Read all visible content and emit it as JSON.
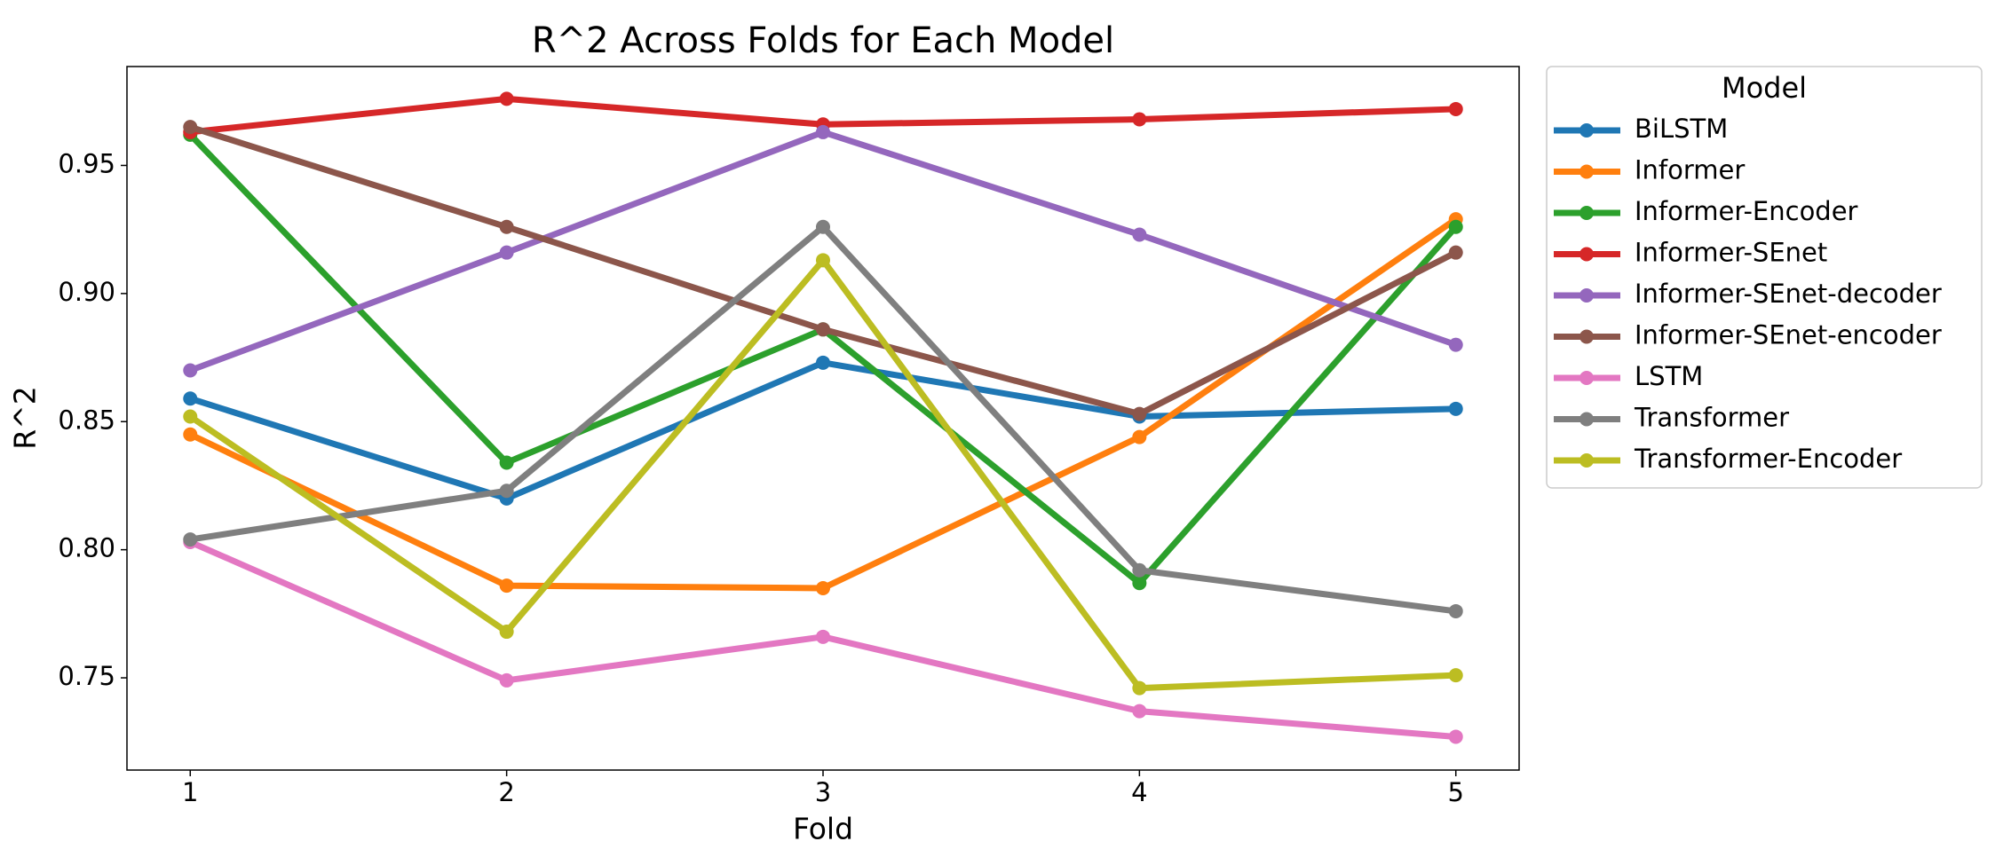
{
  "chart_data": {
    "type": "line",
    "title": "R^2 Across Folds for Each Model",
    "x_label": "Fold",
    "y_label": "R^2",
    "x": [
      1,
      2,
      3,
      4,
      5
    ],
    "xlim": [
      0.8,
      5.2
    ],
    "xticks": [
      1,
      2,
      3,
      4,
      5
    ],
    "ylim": [
      0.714,
      0.9886
    ],
    "yticks": [
      0.75,
      {
        "value": 0.8,
        "label": "0.80"
      },
      0.85,
      {
        "value": 0.9,
        "label": "0.90"
      },
      0.95
    ],
    "grid": false,
    "legend_title": "Model",
    "legend_position": "outside-right",
    "series": [
      {
        "name": "BiLSTM",
        "color": "#1f77b4",
        "values": [
          0.859,
          0.82,
          0.873,
          0.852,
          0.855
        ]
      },
      {
        "name": "Informer",
        "color": "#ff7f0e",
        "values": [
          0.845,
          0.786,
          0.785,
          0.844,
          0.929
        ]
      },
      {
        "name": "Informer-Encoder",
        "color": "#2ca02c",
        "values": [
          0.962,
          0.834,
          0.886,
          0.787,
          0.926
        ]
      },
      {
        "name": "Informer-SEnet",
        "color": "#d62728",
        "values": [
          0.963,
          0.976,
          0.966,
          0.968,
          0.972
        ]
      },
      {
        "name": "Informer-SEnet-decoder",
        "color": "#9467bd",
        "values": [
          0.87,
          0.916,
          0.963,
          0.923,
          0.88
        ]
      },
      {
        "name": "Informer-SEnet-encoder",
        "color": "#8c564b",
        "values": [
          0.965,
          0.926,
          0.886,
          0.853,
          0.916
        ]
      },
      {
        "name": "LSTM",
        "color": "#e377c2",
        "values": [
          0.803,
          0.749,
          0.766,
          0.737,
          0.727
        ]
      },
      {
        "name": "Transformer",
        "color": "#7f7f7f",
        "values": [
          0.804,
          0.823,
          0.926,
          0.792,
          0.776
        ]
      },
      {
        "name": "Transformer-Encoder",
        "color": "#bcbd22",
        "values": [
          0.852,
          0.768,
          0.913,
          0.746,
          0.751
        ]
      }
    ]
  }
}
